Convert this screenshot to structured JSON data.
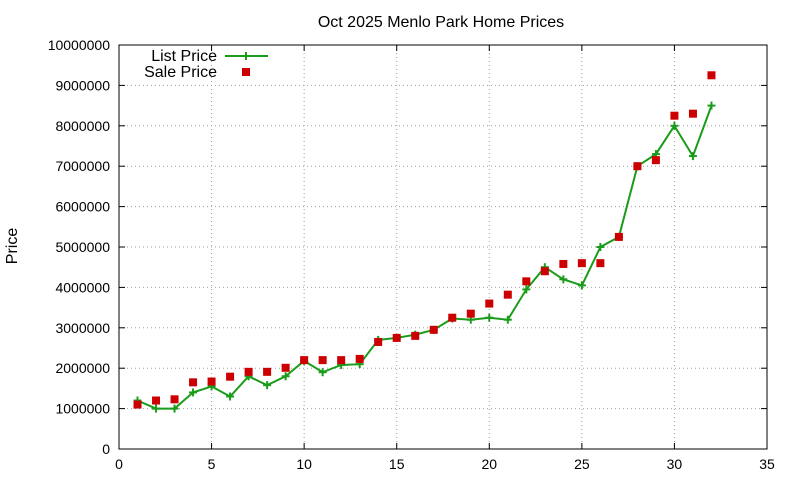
{
  "chart_data": {
    "type": "line",
    "title": "Oct 2025 Menlo Park Home Prices",
    "xlabel": "",
    "ylabel": "Price",
    "xlim": [
      0,
      35
    ],
    "ylim": [
      0,
      10000000
    ],
    "xticks": [
      0,
      5,
      10,
      15,
      20,
      25,
      30,
      35
    ],
    "xtick_labels": [
      "0",
      "5",
      "10",
      "15",
      "20",
      "25",
      "30",
      "35"
    ],
    "yticks": [
      0,
      1000000,
      2000000,
      3000000,
      4000000,
      5000000,
      6000000,
      7000000,
      8000000,
      9000000,
      10000000
    ],
    "ytick_labels": [
      "0",
      "1000000",
      "2000000",
      "3000000",
      "4000000",
      "5000000",
      "6000000",
      "7000000",
      "8000000",
      "9000000",
      "10000000"
    ],
    "grid": true,
    "legend_position": "top-left",
    "series": [
      {
        "name": "List Price",
        "style": "line+cross",
        "color": "#1a9c1a",
        "x": [
          1,
          2,
          3,
          4,
          5,
          6,
          7,
          8,
          9,
          10,
          11,
          12,
          13,
          14,
          15,
          16,
          17,
          18,
          19,
          20,
          21,
          22,
          23,
          24,
          25,
          26,
          27,
          28,
          29,
          30,
          31,
          32
        ],
        "values": [
          1200000,
          1000000,
          1000000,
          1400000,
          1550000,
          1300000,
          1800000,
          1580000,
          1800000,
          2180000,
          1900000,
          2080000,
          2100000,
          2700000,
          2750000,
          2830000,
          2950000,
          3230000,
          3200000,
          3250000,
          3200000,
          3950000,
          4500000,
          4200000,
          4050000,
          5000000,
          5250000,
          7000000,
          7300000,
          8000000,
          7250000,
          8500000
        ]
      },
      {
        "name": "Sale Price",
        "style": "points-square",
        "color": "#cc0000",
        "x": [
          1,
          2,
          3,
          4,
          5,
          6,
          7,
          8,
          9,
          10,
          11,
          12,
          13,
          14,
          15,
          16,
          17,
          18,
          19,
          20,
          21,
          22,
          23,
          24,
          25,
          26,
          27,
          28,
          29,
          30,
          31,
          32
        ],
        "values": [
          1100000,
          1200000,
          1230000,
          1650000,
          1670000,
          1790000,
          1910000,
          1910000,
          2010000,
          2200000,
          2200000,
          2200000,
          2230000,
          2650000,
          2750000,
          2800000,
          2950000,
          3250000,
          3350000,
          3600000,
          3820000,
          4150000,
          4400000,
          4580000,
          4600000,
          4600000,
          5250000,
          7000000,
          7150000,
          8250000,
          8300000,
          9250000
        ]
      }
    ]
  }
}
